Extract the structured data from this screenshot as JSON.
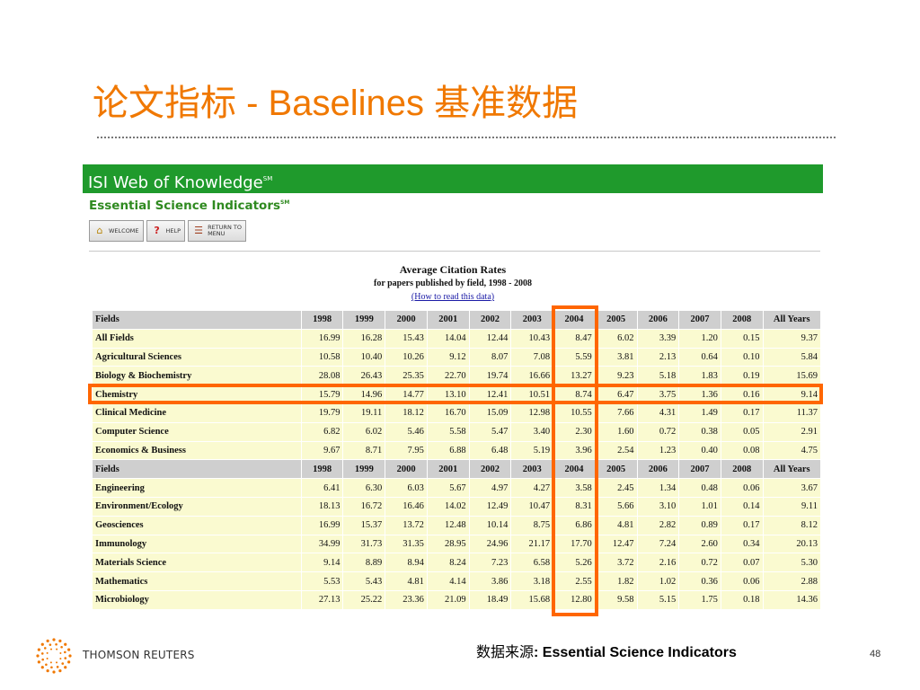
{
  "slide": {
    "title": "论文指标 - Baselines 基准数据",
    "source_label": "数据来源",
    "source_sep": ": ",
    "source_value": "Essential Science Indicators",
    "page_number": "48",
    "brand": "THOMSON REUTERS",
    "accent_color": "#f07800"
  },
  "screenshot": {
    "header": "ISI Web of Knowledge",
    "header_mark": "SM",
    "subtitle": "Essential Science Indicators",
    "subtitle_mark": "SM",
    "buttons": {
      "welcome": "WELCOME",
      "help": "HELP",
      "return_line1": "RETURN TO",
      "return_line2": "MENU"
    },
    "caption_title": "Average Citation Rates",
    "caption_sub": "for papers published by field, 1998 - 2008",
    "caption_link": "(How to read this data)"
  },
  "table": {
    "header_label": "Fields",
    "years": [
      "1998",
      "1999",
      "2000",
      "2001",
      "2002",
      "2003",
      "2004",
      "2005",
      "2006",
      "2007",
      "2008"
    ],
    "all_years_label": "All Years",
    "rows_top": [
      {
        "field": "All Fields",
        "values": [
          "16.99",
          "16.28",
          "15.43",
          "14.04",
          "12.44",
          "10.43",
          "8.47",
          "6.02",
          "3.39",
          "1.20",
          "0.15"
        ],
        "all": "9.37"
      },
      {
        "field": "Agricultural Sciences",
        "values": [
          "10.58",
          "10.40",
          "10.26",
          "9.12",
          "8.07",
          "7.08",
          "5.59",
          "3.81",
          "2.13",
          "0.64",
          "0.10"
        ],
        "all": "5.84"
      },
      {
        "field": "Biology & Biochemistry",
        "values": [
          "28.08",
          "26.43",
          "25.35",
          "22.70",
          "19.74",
          "16.66",
          "13.27",
          "9.23",
          "5.18",
          "1.83",
          "0.19"
        ],
        "all": "15.69"
      },
      {
        "field": "Chemistry",
        "values": [
          "15.79",
          "14.96",
          "14.77",
          "13.10",
          "12.41",
          "10.51",
          "8.74",
          "6.47",
          "3.75",
          "1.36",
          "0.16"
        ],
        "all": "9.14"
      },
      {
        "field": "Clinical Medicine",
        "values": [
          "19.79",
          "19.11",
          "18.12",
          "16.70",
          "15.09",
          "12.98",
          "10.55",
          "7.66",
          "4.31",
          "1.49",
          "0.17"
        ],
        "all": "11.37"
      },
      {
        "field": "Computer Science",
        "values": [
          "6.82",
          "6.02",
          "5.46",
          "5.58",
          "5.47",
          "3.40",
          "2.30",
          "1.60",
          "0.72",
          "0.38",
          "0.05"
        ],
        "all": "2.91"
      },
      {
        "field": "Economics & Business",
        "values": [
          "9.67",
          "8.71",
          "7.95",
          "6.88",
          "6.48",
          "5.19",
          "3.96",
          "2.54",
          "1.23",
          "0.40",
          "0.08"
        ],
        "all": "4.75"
      }
    ],
    "rows_bottom": [
      {
        "field": "Engineering",
        "values": [
          "6.41",
          "6.30",
          "6.03",
          "5.67",
          "4.97",
          "4.27",
          "3.58",
          "2.45",
          "1.34",
          "0.48",
          "0.06"
        ],
        "all": "3.67"
      },
      {
        "field": "Environment/Ecology",
        "values": [
          "18.13",
          "16.72",
          "16.46",
          "14.02",
          "12.49",
          "10.47",
          "8.31",
          "5.66",
          "3.10",
          "1.01",
          "0.14"
        ],
        "all": "9.11"
      },
      {
        "field": "Geosciences",
        "values": [
          "16.99",
          "15.37",
          "13.72",
          "12.48",
          "10.14",
          "8.75",
          "6.86",
          "4.81",
          "2.82",
          "0.89",
          "0.17"
        ],
        "all": "8.12"
      },
      {
        "field": "Immunology",
        "values": [
          "34.99",
          "31.73",
          "31.35",
          "28.95",
          "24.96",
          "21.17",
          "17.70",
          "12.47",
          "7.24",
          "2.60",
          "0.34"
        ],
        "all": "20.13"
      },
      {
        "field": "Materials Science",
        "values": [
          "9.14",
          "8.89",
          "8.94",
          "8.24",
          "7.23",
          "6.58",
          "5.26",
          "3.72",
          "2.16",
          "0.72",
          "0.07"
        ],
        "all": "5.30"
      },
      {
        "field": "Mathematics",
        "values": [
          "5.53",
          "5.43",
          "4.81",
          "4.14",
          "3.86",
          "3.18",
          "2.55",
          "1.82",
          "1.02",
          "0.36",
          "0.06"
        ],
        "all": "2.88"
      },
      {
        "field": "Microbiology",
        "values": [
          "27.13",
          "25.22",
          "23.36",
          "21.09",
          "18.49",
          "15.68",
          "12.80",
          "9.58",
          "5.15",
          "1.75",
          "0.18"
        ],
        "all": "14.36"
      }
    ]
  },
  "highlight_color": "#ff6600"
}
